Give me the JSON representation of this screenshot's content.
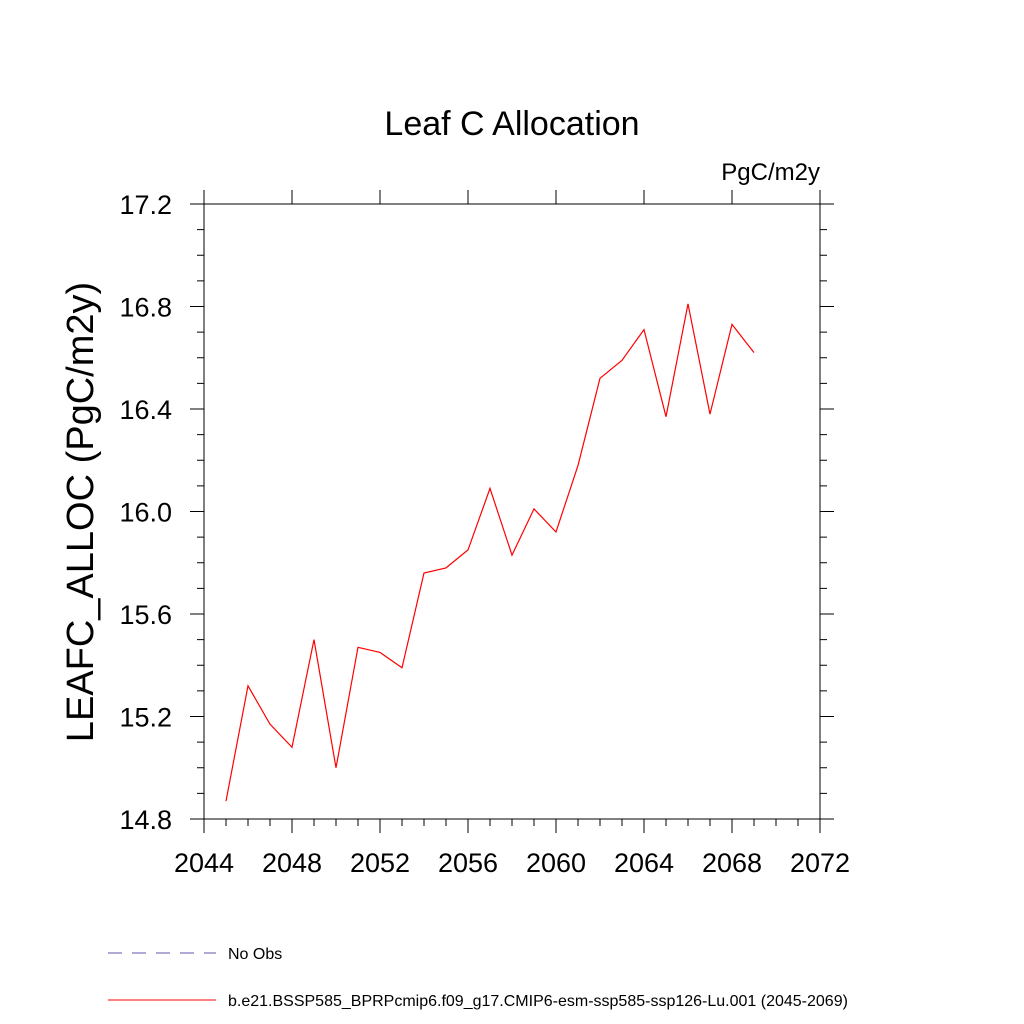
{
  "chart_data": {
    "type": "line",
    "title": "Leaf C Allocation",
    "units_label": "PgC/m2y",
    "ylabel": "LEAFC_ALLOC  (PgC/m2y)",
    "xlabel": "",
    "xlim": [
      2044,
      2072
    ],
    "ylim": [
      14.8,
      17.2
    ],
    "x_ticks": [
      "2044",
      "2048",
      "2052",
      "2056",
      "2060",
      "2064",
      "2068",
      "2072"
    ],
    "y_ticks": [
      "14.8",
      "15.2",
      "15.6",
      "16.0",
      "16.4",
      "16.8",
      "17.2"
    ],
    "x_tick_values": [
      2044,
      2048,
      2052,
      2056,
      2060,
      2064,
      2068,
      2072
    ],
    "y_tick_values": [
      14.8,
      15.2,
      15.6,
      16.0,
      16.4,
      16.8,
      17.2
    ],
    "grid": false,
    "legend_placement": "bottom",
    "series": [
      {
        "name": "b.e21.BSSP585_BPRPcmip6.f09_g17.CMIP6-esm-ssp585-ssp126-Lu.001 (2045-2069)",
        "color": "#ff0000",
        "x": [
          2045,
          2046,
          2047,
          2048,
          2049,
          2050,
          2051,
          2052,
          2053,
          2054,
          2055,
          2056,
          2057,
          2058,
          2059,
          2060,
          2061,
          2062,
          2063,
          2064,
          2065,
          2066,
          2067,
          2068,
          2069
        ],
        "values": [
          14.87,
          15.32,
          15.17,
          15.08,
          15.5,
          15.0,
          15.47,
          15.45,
          15.39,
          15.76,
          15.78,
          15.85,
          16.09,
          15.83,
          16.01,
          15.92,
          16.18,
          16.52,
          16.59,
          16.71,
          16.37,
          16.81,
          16.38,
          16.73,
          16.62
        ]
      }
    ],
    "legend": [
      {
        "label": "No Obs",
        "color": "#6655aa",
        "dashed": true
      },
      {
        "label": "b.e21.BSSP585_BPRPcmip6.f09_g17.CMIP6-esm-ssp585-ssp126-Lu.001 (2045-2069)",
        "color": "#ff0000",
        "dashed": false
      }
    ]
  }
}
